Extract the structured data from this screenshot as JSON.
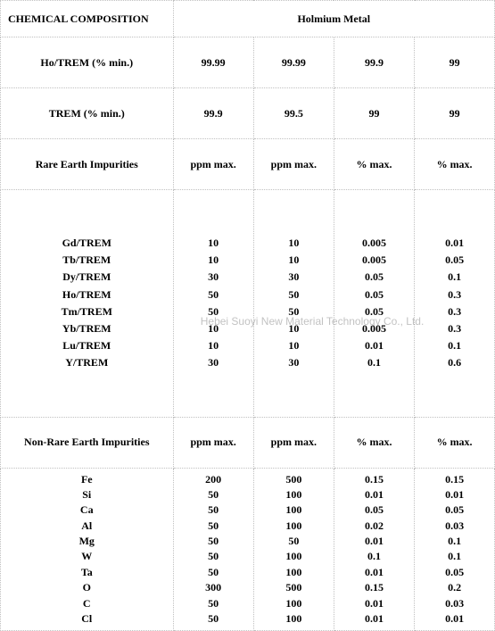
{
  "title_left": "CHEMICAL COMPOSITION",
  "title_right": "Holmium Metal",
  "rows_header": [
    {
      "label": "Ho/TREM (% min.)",
      "c1": "99.99",
      "c2": "99.99",
      "c3": "99.9",
      "c4": "99"
    },
    {
      "label": "TREM (% min.)",
      "c1": "99.9",
      "c2": "99.5",
      "c3": "99",
      "c4": "99"
    }
  ],
  "re_section_label": "Rare Earth Impurities",
  "units_re": {
    "c1": "ppm max.",
    "c2": "ppm max.",
    "c3": "% max.",
    "c4": "% max."
  },
  "re_impurities": [
    {
      "label": "Gd/TREM",
      "c1": "10",
      "c2": "10",
      "c3": "0.005",
      "c4": "0.01"
    },
    {
      "label": "Tb/TREM",
      "c1": "10",
      "c2": "10",
      "c3": "0.005",
      "c4": "0.05"
    },
    {
      "label": "Dy/TREM",
      "c1": "30",
      "c2": "30",
      "c3": "0.05",
      "c4": "0.1"
    },
    {
      "label": "Ho/TREM",
      "c1": "50",
      "c2": "50",
      "c3": "0.05",
      "c4": "0.3"
    },
    {
      "label": "Tm/TREM",
      "c1": "50",
      "c2": "50",
      "c3": "0.05",
      "c4": "0.3"
    },
    {
      "label": "Yb/TREM",
      "c1": "10",
      "c2": "10",
      "c3": "0.005",
      "c4": "0.3"
    },
    {
      "label": "Lu/TREM",
      "c1": "10",
      "c2": "10",
      "c3": "0.01",
      "c4": "0.1"
    },
    {
      "label": "Y/TREM",
      "c1": "30",
      "c2": "30",
      "c3": "0.1",
      "c4": "0.6"
    }
  ],
  "nonre_section_label": "Non-Rare Earth Impurities",
  "units_nonre": {
    "c1": "ppm max.",
    "c2": "ppm max.",
    "c3": "% max.",
    "c4": "% max."
  },
  "nonre_impurities": [
    {
      "label": "Fe",
      "c1": "200",
      "c2": "500",
      "c3": "0.15",
      "c4": "0.15"
    },
    {
      "label": "Si",
      "c1": "50",
      "c2": "100",
      "c3": "0.01",
      "c4": "0.01"
    },
    {
      "label": "Ca",
      "c1": "50",
      "c2": "100",
      "c3": "0.05",
      "c4": "0.05"
    },
    {
      "label": "Al",
      "c1": "50",
      "c2": "100",
      "c3": "0.02",
      "c4": "0.03"
    },
    {
      "label": "Mg",
      "c1": "50",
      "c2": "50",
      "c3": "0.01",
      "c4": "0.1"
    },
    {
      "label": "W",
      "c1": "50",
      "c2": "100",
      "c3": "0.1",
      "c4": "0.1"
    },
    {
      "label": "Ta",
      "c1": "50",
      "c2": "100",
      "c3": "0.01",
      "c4": "0.05"
    },
    {
      "label": "O",
      "c1": "300",
      "c2": "500",
      "c3": "0.15",
      "c4": "0.2"
    },
    {
      "label": "C",
      "c1": "50",
      "c2": "100",
      "c3": "0.01",
      "c4": "0.03"
    },
    {
      "label": "Cl",
      "c1": "50",
      "c2": "100",
      "c3": "0.01",
      "c4": "0.01"
    }
  ],
  "watermark_text": "Hebei Suoyi New Material Technology Co., Ltd."
}
